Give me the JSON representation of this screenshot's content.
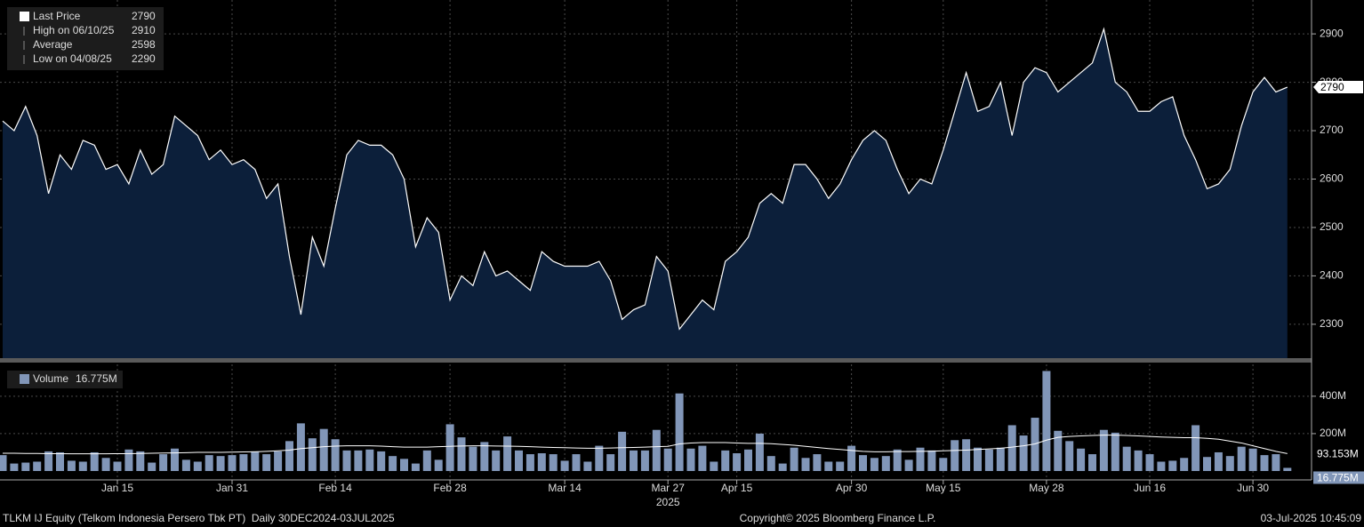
{
  "chart_data": [
    {
      "type": "area",
      "ylim": [
        2230,
        2970
      ],
      "yticks": [
        2300,
        2400,
        2500,
        2600,
        2700,
        2800,
        2900
      ],
      "grid": true,
      "series": [
        {
          "name": "Last Price",
          "color": "#ffffff",
          "fill": "#0c1f3a",
          "values": [
            2720,
            2700,
            2750,
            2690,
            2570,
            2650,
            2620,
            2680,
            2670,
            2620,
            2630,
            2590,
            2660,
            2610,
            2630,
            2730,
            2710,
            2690,
            2640,
            2660,
            2630,
            2640,
            2620,
            2560,
            2590,
            2440,
            2320,
            2480,
            2420,
            2540,
            2650,
            2680,
            2670,
            2670,
            2650,
            2600,
            2460,
            2520,
            2490,
            2350,
            2400,
            2380,
            2450,
            2400,
            2410,
            2390,
            2370,
            2450,
            2430,
            2420,
            2420,
            2420,
            2430,
            2390,
            2310,
            2330,
            2340,
            2440,
            2410,
            2290,
            2320,
            2350,
            2330,
            2430,
            2450,
            2480,
            2550,
            2570,
            2550,
            2630,
            2630,
            2600,
            2560,
            2590,
            2640,
            2680,
            2700,
            2680,
            2620,
            2570,
            2600,
            2590,
            2660,
            2740,
            2820,
            2740,
            2750,
            2800,
            2690,
            2800,
            2830,
            2820,
            2780,
            2800,
            2820,
            2840,
            2910,
            2800,
            2780,
            2740,
            2740,
            2760,
            2770,
            2690,
            2640,
            2580,
            2590,
            2620,
            2710,
            2780,
            2810,
            2780,
            2790
          ]
        }
      ],
      "legend": [
        {
          "label": "High on 06/10/25",
          "value": 2910
        },
        {
          "label": "Average",
          "value": 2598
        },
        {
          "label": "Low on 04/08/25",
          "value": 2290
        }
      ]
    },
    {
      "type": "bar",
      "ylim": [
        0,
        580
      ],
      "yticks": [
        {
          "value": 200,
          "label": "200M"
        },
        {
          "value": 400,
          "label": "400M"
        }
      ],
      "grid": true,
      "categories": [
        null,
        null,
        null,
        null,
        null,
        null,
        null,
        null,
        null,
        null,
        "Jan 15",
        null,
        null,
        null,
        null,
        null,
        null,
        null,
        null,
        null,
        "Jan 31",
        null,
        null,
        null,
        null,
        null,
        null,
        null,
        null,
        "Feb 14",
        null,
        null,
        null,
        null,
        null,
        null,
        null,
        null,
        null,
        "Feb 28",
        null,
        null,
        null,
        null,
        null,
        null,
        null,
        null,
        null,
        "Mar 14",
        null,
        null,
        null,
        null,
        null,
        null,
        null,
        null,
        "Mar 27",
        null,
        null,
        null,
        null,
        null,
        "Apr 15",
        null,
        null,
        null,
        null,
        null,
        null,
        null,
        null,
        null,
        "Apr 30",
        null,
        null,
        null,
        null,
        null,
        null,
        null,
        "May 15",
        null,
        null,
        null,
        null,
        null,
        null,
        null,
        null,
        "May 28",
        null,
        null,
        null,
        null,
        null,
        null,
        null,
        null,
        "Jun 16",
        null,
        null,
        null,
        null,
        null,
        null,
        null,
        null,
        "Jun 30",
        null,
        null,
        null
      ],
      "year_label": "2025",
      "series": [
        {
          "name": "Volume",
          "color": "#8196b8",
          "last_label": "16.775M",
          "values": [
            85,
            40,
            45,
            50,
            105,
            100,
            55,
            50,
            100,
            70,
            50,
            115,
            105,
            45,
            90,
            120,
            60,
            50,
            85,
            80,
            85,
            90,
            105,
            90,
            105,
            160,
            255,
            175,
            225,
            170,
            110,
            110,
            115,
            105,
            80,
            65,
            40,
            110,
            60,
            250,
            180,
            130,
            155,
            110,
            185,
            110,
            90,
            95,
            90,
            55,
            90,
            50,
            135,
            90,
            210,
            110,
            110,
            220,
            120,
            415,
            120,
            135,
            50,
            110,
            95,
            115,
            200,
            80,
            40,
            125,
            70,
            90,
            50,
            50,
            135,
            85,
            70,
            80,
            115,
            60,
            125,
            110,
            70,
            165,
            170,
            125,
            115,
            125,
            245,
            190,
            285,
            535,
            215,
            160,
            120,
            90,
            220,
            205,
            130,
            110,
            90,
            50,
            55,
            70,
            245,
            75,
            100,
            80,
            130,
            120,
            85,
            90,
            16.775
          ]
        },
        {
          "kind": "line",
          "color": "#ffffff",
          "last_label": "93.153M",
          "values": [
            95,
            95,
            94,
            94,
            93,
            93,
            92,
            92,
            92,
            92,
            93,
            93,
            94,
            95,
            96,
            97,
            98,
            100,
            100,
            100,
            101,
            102,
            103,
            105,
            108,
            112,
            120,
            125,
            130,
            133,
            135,
            135,
            135,
            133,
            130,
            128,
            128,
            128,
            130,
            132,
            134,
            135,
            135,
            134,
            133,
            132,
            130,
            128,
            126,
            125,
            123,
            122,
            122,
            123,
            125,
            126,
            128,
            130,
            132,
            145,
            150,
            152,
            152,
            152,
            150,
            148,
            148,
            146,
            142,
            138,
            132,
            126,
            120,
            115,
            110,
            105,
            103,
            103,
            104,
            104,
            105,
            106,
            108,
            110,
            112,
            115,
            118,
            122,
            128,
            135,
            145,
            165,
            180,
            185,
            188,
            190,
            192,
            192,
            190,
            188,
            185,
            182,
            180,
            178,
            178,
            175,
            170,
            160,
            150,
            135,
            120,
            105,
            93.153
          ]
        }
      ]
    }
  ],
  "footer": {
    "left": "TLKM IJ Equity (Telkom Indonesia Persero Tbk PT)  Daily 30DEC2024-03JUL2025",
    "center": "Copyright© 2025 Bloomberg Finance L.P.",
    "right": "03-Jul-2025 10:45:09"
  }
}
